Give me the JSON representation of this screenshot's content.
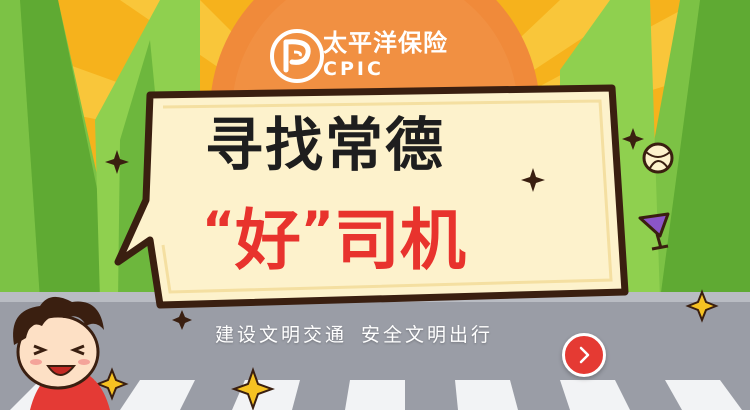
{
  "brand": {
    "name_cn": "太平洋保险",
    "name_en": "CPIC",
    "logo_icon": "cpic-logo-icon"
  },
  "headline": {
    "line1": "寻找常德",
    "quote_open": "“",
    "highlight": "好",
    "quote_close": "”",
    "line2_rest": "司机"
  },
  "slogan": {
    "part1": "建设文明交通",
    "part2": "安全文明出行"
  },
  "next_button": {
    "icon": "chevron-right-icon"
  },
  "colors": {
    "background": "#f6b21c",
    "orange": "#f08a3a",
    "bubble": "#fdf2cc",
    "bubble_border": "#3a1f10",
    "tree": "#7cc245",
    "road": "#9a9da6",
    "headline_dark": "#1e1e1e",
    "headline_red": "#e8332d",
    "button_red": "#e53a33"
  }
}
